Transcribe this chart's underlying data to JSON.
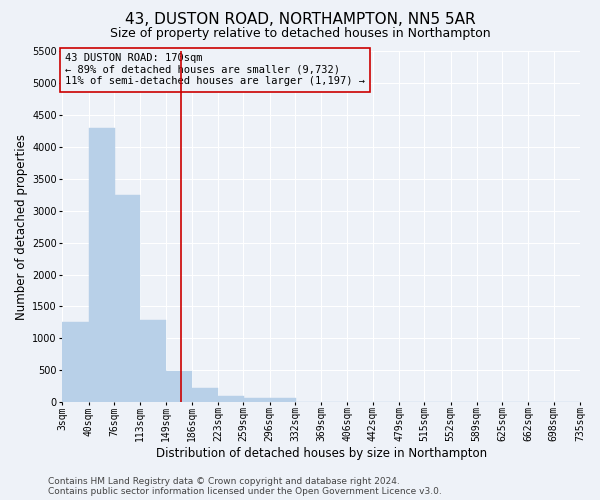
{
  "title": "43, DUSTON ROAD, NORTHAMPTON, NN5 5AR",
  "subtitle": "Size of property relative to detached houses in Northampton",
  "xlabel": "Distribution of detached houses by size in Northampton",
  "ylabel": "Number of detached properties",
  "footnote1": "Contains HM Land Registry data © Crown copyright and database right 2024.",
  "footnote2": "Contains public sector information licensed under the Open Government Licence v3.0.",
  "annotation_line1": "43 DUSTON ROAD: 170sqm",
  "annotation_line2": "← 89% of detached houses are smaller (9,732)",
  "annotation_line3": "11% of semi-detached houses are larger (1,197) →",
  "bar_color": "#b8d0e8",
  "bar_edge_color": "#b8d0e8",
  "vline_color": "#cc0000",
  "vline_x": 170,
  "categories": [
    "3sqm",
    "40sqm",
    "76sqm",
    "113sqm",
    "149sqm",
    "186sqm",
    "223sqm",
    "259sqm",
    "296sqm",
    "332sqm",
    "369sqm",
    "406sqm",
    "442sqm",
    "479sqm",
    "515sqm",
    "552sqm",
    "589sqm",
    "625sqm",
    "662sqm",
    "698sqm",
    "735sqm"
  ],
  "bin_edges": [
    3,
    40,
    76,
    113,
    149,
    186,
    223,
    259,
    296,
    332,
    369,
    406,
    442,
    479,
    515,
    552,
    589,
    625,
    662,
    698,
    735
  ],
  "values": [
    1250,
    4300,
    3250,
    1280,
    480,
    215,
    90,
    65,
    60,
    0,
    0,
    0,
    0,
    0,
    0,
    0,
    0,
    0,
    0,
    0
  ],
  "ylim": [
    0,
    5500
  ],
  "yticks": [
    0,
    500,
    1000,
    1500,
    2000,
    2500,
    3000,
    3500,
    4000,
    4500,
    5000,
    5500
  ],
  "background_color": "#eef2f8",
  "grid_color": "#ffffff",
  "title_fontsize": 11,
  "subtitle_fontsize": 9,
  "axis_label_fontsize": 8.5,
  "tick_fontsize": 7,
  "annotation_fontsize": 7.5,
  "footnote_fontsize": 6.5
}
